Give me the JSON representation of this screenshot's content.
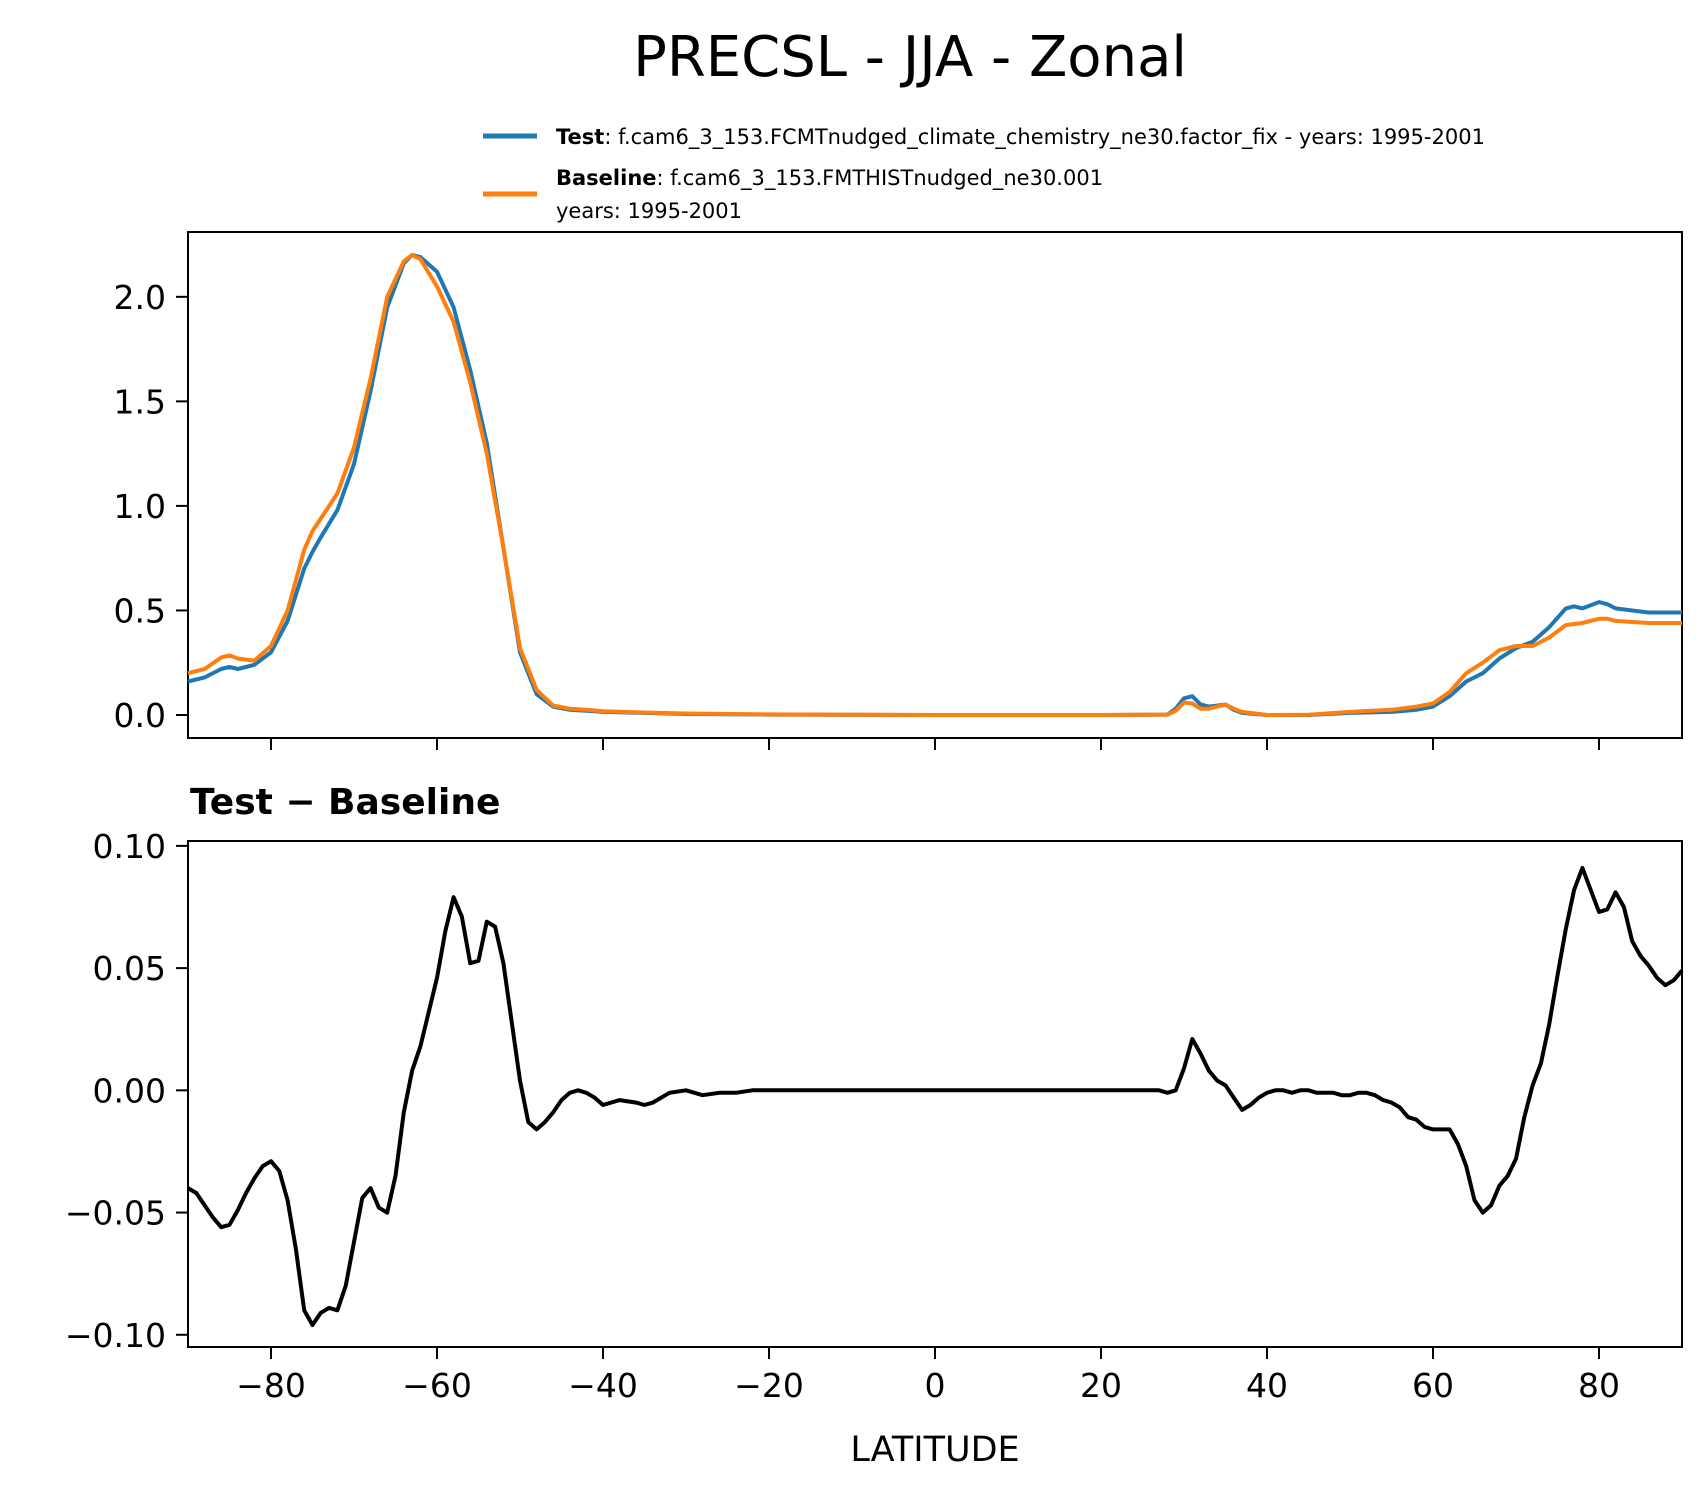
{
  "figure": {
    "title": "PRECSL - JJA - Zonal"
  },
  "legend": {
    "test_label": "Test",
    "test_desc": ": f.cam6_3_153.FCMTnudged_climate_chemistry_ne30.factor_fix - years: 1995-2001",
    "baseline_label": "Baseline",
    "baseline_desc": ": f.cam6_3_153.FMTHISTnudged_ne30.001",
    "baseline_years": "years: 1995-2001"
  },
  "colors": {
    "test": "#1f77b4",
    "baseline": "#ff7f0e",
    "difference": "#000000"
  },
  "chart_data": [
    {
      "type": "line",
      "title": "",
      "xlabel": "",
      "ylabel": "",
      "xlim": [
        -90,
        90
      ],
      "ylim": [
        -0.11,
        2.31
      ],
      "yticks": [
        0.0,
        0.5,
        1.0,
        1.5,
        2.0
      ],
      "ytick_labels": [
        "0.0",
        "0.5",
        "1.0",
        "1.5",
        "2.0"
      ],
      "xticks": [
        -80,
        -60,
        -40,
        -20,
        0,
        20,
        40,
        60,
        80
      ],
      "series": [
        {
          "name": "Test",
          "color": "#1f77b4",
          "x": [
            -90,
            -88,
            -86,
            -85,
            -84,
            -82,
            -80,
            -78,
            -76,
            -75,
            -74,
            -72,
            -70,
            -68,
            -66,
            -64,
            -63,
            -62,
            -60,
            -58,
            -56,
            -54,
            -52,
            -50,
            -48,
            -46,
            -44,
            -42,
            -40,
            -35,
            -30,
            -20,
            0,
            20,
            28,
            29,
            30,
            31,
            32,
            33,
            34,
            35,
            36,
            37,
            40,
            45,
            50,
            55,
            58,
            60,
            62,
            64,
            66,
            68,
            70,
            72,
            74,
            76,
            77,
            78,
            80,
            81,
            82,
            84,
            86,
            90
          ],
          "values": [
            0.16,
            0.18,
            0.22,
            0.23,
            0.22,
            0.24,
            0.3,
            0.45,
            0.7,
            0.78,
            0.85,
            0.98,
            1.2,
            1.55,
            1.95,
            2.16,
            2.2,
            2.19,
            2.12,
            1.95,
            1.65,
            1.3,
            0.8,
            0.3,
            0.1,
            0.04,
            0.025,
            0.02,
            0.015,
            0.01,
            0.005,
            0.002,
            0.0,
            0.0,
            0.002,
            0.03,
            0.08,
            0.09,
            0.05,
            0.04,
            0.045,
            0.05,
            0.025,
            0.01,
            0.0,
            0.0,
            0.01,
            0.015,
            0.025,
            0.04,
            0.09,
            0.16,
            0.2,
            0.27,
            0.32,
            0.35,
            0.42,
            0.51,
            0.52,
            0.51,
            0.54,
            0.53,
            0.51,
            0.5,
            0.49,
            0.49
          ]
        },
        {
          "name": "Baseline",
          "color": "#ff7f0e",
          "x": [
            -90,
            -88,
            -86,
            -85,
            -84,
            -82,
            -80,
            -78,
            -76,
            -75,
            -74,
            -72,
            -70,
            -68,
            -66,
            -64,
            -63,
            -62,
            -60,
            -58,
            -56,
            -54,
            -52,
            -50,
            -48,
            -46,
            -44,
            -42,
            -40,
            -35,
            -30,
            -20,
            0,
            20,
            28,
            29,
            30,
            31,
            32,
            33,
            34,
            35,
            36,
            37,
            40,
            45,
            50,
            55,
            58,
            60,
            62,
            64,
            66,
            68,
            70,
            72,
            74,
            76,
            77,
            78,
            80,
            81,
            82,
            84,
            86,
            90
          ],
          "values": [
            0.2,
            0.22,
            0.275,
            0.285,
            0.27,
            0.26,
            0.33,
            0.5,
            0.79,
            0.88,
            0.94,
            1.06,
            1.28,
            1.61,
            2.0,
            2.17,
            2.2,
            2.18,
            2.05,
            1.88,
            1.59,
            1.25,
            0.8,
            0.32,
            0.12,
            0.045,
            0.03,
            0.025,
            0.018,
            0.012,
            0.007,
            0.003,
            0.0,
            0.0,
            0.002,
            0.02,
            0.06,
            0.055,
            0.03,
            0.03,
            0.04,
            0.05,
            0.03,
            0.015,
            0.0,
            0.001,
            0.015,
            0.025,
            0.04,
            0.055,
            0.11,
            0.2,
            0.25,
            0.31,
            0.33,
            0.33,
            0.37,
            0.43,
            0.435,
            0.44,
            0.46,
            0.46,
            0.45,
            0.445,
            0.44,
            0.44
          ]
        }
      ]
    },
    {
      "type": "line",
      "title": "Test − Baseline",
      "xlabel": "LATITUDE",
      "ylabel": "",
      "xlim": [
        -90,
        90
      ],
      "ylim": [
        -0.105,
        0.102
      ],
      "yticks": [
        -0.1,
        -0.05,
        0.0,
        0.05,
        0.1
      ],
      "ytick_labels": [
        "−0.10",
        "−0.05",
        "0.00",
        "0.05",
        "0.10"
      ],
      "xticks": [
        -80,
        -60,
        -40,
        -20,
        0,
        20,
        40,
        60,
        80
      ],
      "xtick_labels": [
        "−80",
        "−60",
        "−40",
        "−20",
        "0",
        "20",
        "40",
        "60",
        "80"
      ],
      "series": [
        {
          "name": "Test − Baseline",
          "color": "#000000",
          "x": [
            -90,
            -89,
            -88,
            -87,
            -86,
            -85,
            -84,
            -83,
            -82,
            -81,
            -80,
            -79,
            -78,
            -77,
            -76,
            -75,
            -74,
            -73,
            -72,
            -71,
            -70,
            -69,
            -68,
            -67,
            -66,
            -65,
            -64,
            -63,
            -62,
            -61,
            -60,
            -59,
            -58,
            -57,
            -56,
            -55,
            -54,
            -53,
            -52,
            -51,
            -50,
            -49,
            -48,
            -47,
            -46,
            -45,
            -44,
            -43,
            -42,
            -41,
            -40,
            -38,
            -36,
            -35,
            -34,
            -32,
            -30,
            -28,
            -26,
            -24,
            -22,
            -20,
            -18,
            -16,
            -14,
            -12,
            -10,
            0,
            10,
            20,
            27,
            28,
            29,
            30,
            31,
            32,
            33,
            34,
            35,
            36,
            37,
            38,
            39,
            40,
            41,
            42,
            43,
            44,
            45,
            46,
            47,
            48,
            49,
            50,
            51,
            52,
            53,
            54,
            55,
            56,
            57,
            58,
            59,
            60,
            61,
            62,
            63,
            64,
            65,
            66,
            67,
            68,
            69,
            70,
            71,
            72,
            73,
            74,
            75,
            76,
            77,
            78,
            79,
            80,
            81,
            82,
            83,
            84,
            85,
            86,
            87,
            88,
            89,
            90
          ],
          "values": [
            -0.04,
            -0.042,
            -0.047,
            -0.052,
            -0.056,
            -0.055,
            -0.049,
            -0.042,
            -0.036,
            -0.031,
            -0.029,
            -0.033,
            -0.045,
            -0.065,
            -0.09,
            -0.096,
            -0.091,
            -0.089,
            -0.09,
            -0.08,
            -0.062,
            -0.044,
            -0.04,
            -0.048,
            -0.05,
            -0.035,
            -0.009,
            0.008,
            0.018,
            0.032,
            0.046,
            0.065,
            0.079,
            0.071,
            0.052,
            0.053,
            0.069,
            0.067,
            0.052,
            0.028,
            0.004,
            -0.013,
            -0.016,
            -0.013,
            -0.009,
            -0.004,
            -0.001,
            0.0,
            -0.001,
            -0.003,
            -0.006,
            -0.004,
            -0.005,
            -0.006,
            -0.005,
            -0.001,
            0.0,
            -0.002,
            -0.001,
            -0.001,
            0.0,
            0.0,
            0.0,
            0.0,
            0.0,
            0.0,
            0.0,
            0.0,
            0.0,
            0.0,
            0.0,
            -0.001,
            0.0,
            0.009,
            0.021,
            0.015,
            0.008,
            0.004,
            0.002,
            -0.003,
            -0.008,
            -0.006,
            -0.003,
            -0.001,
            0.0,
            0.0,
            -0.001,
            0.0,
            0.0,
            -0.001,
            -0.001,
            -0.001,
            -0.002,
            -0.002,
            -0.001,
            -0.001,
            -0.002,
            -0.004,
            -0.005,
            -0.007,
            -0.011,
            -0.012,
            -0.015,
            -0.016,
            -0.016,
            -0.016,
            -0.022,
            -0.031,
            -0.045,
            -0.05,
            -0.047,
            -0.039,
            -0.035,
            -0.028,
            -0.011,
            0.002,
            0.011,
            0.027,
            0.047,
            0.066,
            0.082,
            0.091,
            0.082,
            0.073,
            0.074,
            0.081,
            0.075,
            0.061,
            0.055,
            0.051,
            0.046,
            0.043,
            0.045,
            0.049
          ]
        }
      ]
    }
  ]
}
